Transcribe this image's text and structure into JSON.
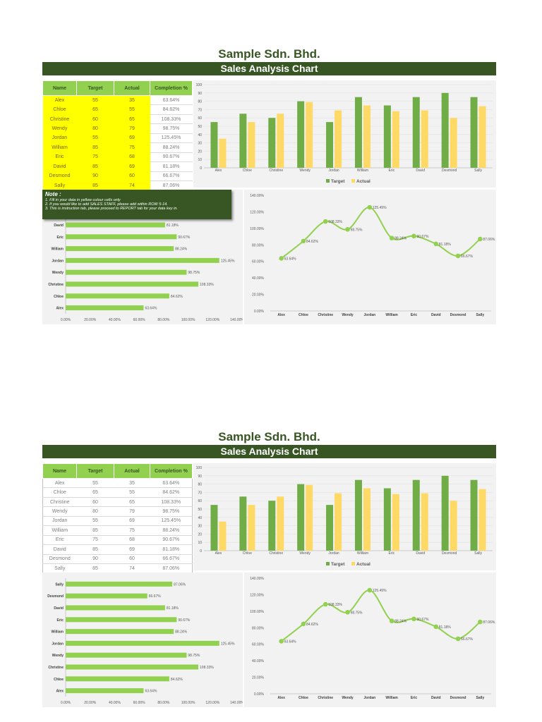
{
  "company": "Sample Sdn. Bhd.",
  "banner": "Sales Analysis Chart",
  "table": {
    "headers": [
      "Name",
      "Target",
      "Actual",
      "Completion %"
    ],
    "rows": [
      [
        "Alex",
        "55",
        "35",
        "63.64%"
      ],
      [
        "Chloe",
        "65",
        "55",
        "84.62%"
      ],
      [
        "Christine",
        "60",
        "65",
        "108.33%"
      ],
      [
        "Wendy",
        "80",
        "79",
        "98.75%"
      ],
      [
        "Jordan",
        "55",
        "69",
        "125.45%"
      ],
      [
        "William",
        "85",
        "75",
        "88.24%"
      ],
      [
        "Eric",
        "75",
        "68",
        "90.67%"
      ],
      [
        "David",
        "85",
        "69",
        "81.18%"
      ],
      [
        "Desmond",
        "90",
        "60",
        "66.67%"
      ],
      [
        "Sally",
        "85",
        "74",
        "87.06%"
      ]
    ]
  },
  "note": {
    "title": "Note :",
    "lines": [
      "1. Fill in your data in yellow colour cells only",
      "2. If you would like to add SALES STAFF, please add within ROW 5-14.",
      "3. This is instruction tab, please proceed to REPORT tab for your data key in."
    ]
  },
  "colors": {
    "dark_green": "#375623",
    "target": "#70ad47",
    "actual": "#ffd966",
    "light_green": "#92d050",
    "input_yellow": "#ffff00"
  },
  "chart_data": [
    {
      "type": "bar",
      "categories": [
        "Alex",
        "Chloe",
        "Christine",
        "Wendy",
        "Jordan",
        "William",
        "Eric",
        "David",
        "Desmond",
        "Sally"
      ],
      "series": [
        {
          "name": "Target",
          "values": [
            55,
            65,
            60,
            80,
            55,
            85,
            75,
            85,
            90,
            85
          ]
        },
        {
          "name": "Actual",
          "values": [
            35,
            55,
            65,
            79,
            69,
            75,
            68,
            69,
            60,
            74
          ]
        }
      ],
      "ylim": [
        0,
        100
      ],
      "yticks": [
        "0",
        "10",
        "20",
        "30",
        "40",
        "50",
        "60",
        "70",
        "80",
        "90",
        "100"
      ],
      "legend": "bottom"
    },
    {
      "type": "bar",
      "orientation": "horizontal",
      "categories": [
        "Alex",
        "Chloe",
        "Christine",
        "Wendy",
        "Jordan",
        "William",
        "Eric",
        "David",
        "Desmond",
        "Sally"
      ],
      "values": [
        63.64,
        84.62,
        108.33,
        98.75,
        125.45,
        88.24,
        90.67,
        81.18,
        66.67,
        87.06
      ],
      "labels": [
        "63.64%",
        "84.62%",
        "108.33%",
        "98.75%",
        "125.45%",
        "88.24%",
        "90.67%",
        "81.18%",
        "66.67%",
        "87.06%"
      ],
      "xlim": [
        0,
        140
      ],
      "xticks": [
        "0.00%",
        "20.00%",
        "40.00%",
        "60.00%",
        "80.00%",
        "100.00%",
        "120.00%",
        "140.00%"
      ]
    },
    {
      "type": "line",
      "categories": [
        "Alex",
        "Chloe",
        "Christine",
        "Wendy",
        "Jordan",
        "William",
        "Eric",
        "David",
        "Desmond",
        "Sally"
      ],
      "values": [
        63.64,
        84.62,
        108.33,
        98.75,
        125.45,
        88.24,
        90.67,
        81.18,
        66.67,
        87.06
      ],
      "labels": [
        "63.64%",
        "84.62%",
        "108.33%",
        "98.75%",
        "125.45%",
        "88.24%",
        "90.67%",
        "81.18%",
        "66.67%",
        "87.06%"
      ],
      "ylim": [
        0,
        140
      ],
      "yticks": [
        "0.00%",
        "20.00%",
        "40.00%",
        "60.00%",
        "80.00%",
        "100.00%",
        "120.00%",
        "140.00%"
      ]
    }
  ]
}
